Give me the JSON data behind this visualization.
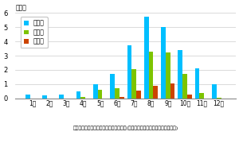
{
  "months": [
    "1月",
    "2月",
    "3月",
    "4月",
    "5月",
    "6月",
    "7月",
    "8月",
    "9月",
    "10月",
    "11月",
    "12月"
  ],
  "hassei": [
    0.3,
    0.2,
    0.25,
    0.5,
    1.0,
    1.7,
    3.7,
    5.7,
    5.0,
    3.4,
    2.1,
    1.0
  ],
  "sekkin": [
    0.0,
    0.0,
    0.0,
    0.1,
    0.6,
    0.7,
    2.05,
    3.3,
    3.2,
    1.7,
    0.4,
    0.05
  ],
  "joriku": [
    0.0,
    0.0,
    0.0,
    0.0,
    0.0,
    0.1,
    0.55,
    0.9,
    1.05,
    0.25,
    0.0,
    0.0
  ],
  "color_hassei": "#00BFFF",
  "color_sekkin": "#7DC400",
  "color_joriku": "#CC4400",
  "ylabel_unit": "（個）",
  "xlabel_label": "月別の台風発生・接近・上陸数の平年値(１９９１〜２０２０年の３０年平均)",
  "legend_hassei": "発生数",
  "legend_sekkin": "接近数",
  "legend_joriku": "上陸数",
  "ylim": [
    0,
    6
  ],
  "yticks": [
    0,
    1,
    2,
    3,
    4,
    5,
    6
  ],
  "bar_width": 0.27
}
